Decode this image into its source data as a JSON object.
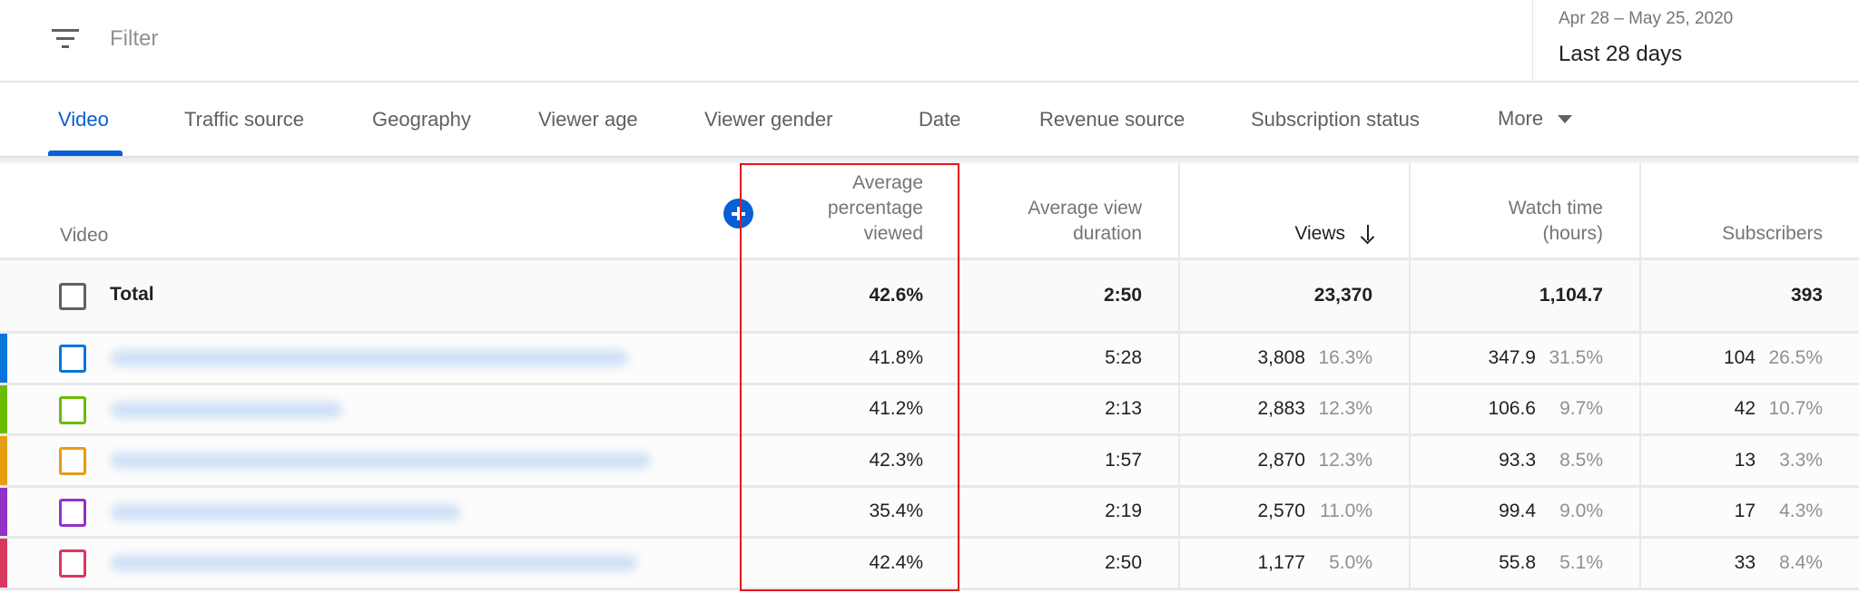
{
  "filter": {
    "placeholder": "Filter",
    "icon": "filter-list-icon"
  },
  "date_picker": {
    "range": "Apr 28 – May 25, 2020",
    "label": "Last 28 days"
  },
  "tabs": [
    {
      "label": "Video",
      "active": true
    },
    {
      "label": "Traffic source",
      "active": false
    },
    {
      "label": "Geography",
      "active": false
    },
    {
      "label": "Viewer age",
      "active": false
    },
    {
      "label": "Viewer gender",
      "active": false
    },
    {
      "label": "Date",
      "active": false
    },
    {
      "label": "Revenue source",
      "active": false
    },
    {
      "label": "Subscription status",
      "active": false
    },
    {
      "label": "More",
      "active": false,
      "icon": "caret-down-icon"
    }
  ],
  "table": {
    "columns": [
      {
        "label": "Video"
      },
      {
        "label": "Average percentage viewed",
        "highlighted": true
      },
      {
        "label": "Average view duration"
      },
      {
        "label": "Views",
        "sorted": "descending"
      },
      {
        "label": "Watch time (hours)"
      },
      {
        "label": "Subscribers"
      }
    ],
    "add_column_icon": "add-circle-icon",
    "total": {
      "label": "Total",
      "avg_pct_viewed": "42.6%",
      "avg_view_duration": "2:50",
      "views": "23,370",
      "watch_time": "1,104.7",
      "subscribers": "393"
    },
    "rows": [
      {
        "color": "#0b74d9",
        "title": "[blurred]",
        "title_width": 570,
        "avg_pct_viewed": "41.8%",
        "avg_view_duration": "5:28",
        "views": "3,808",
        "views_pct": "16.3%",
        "watch_time": "347.9",
        "watch_time_pct": "31.5%",
        "subscribers": "104",
        "subscribers_pct": "26.5%"
      },
      {
        "color": "#6bbb00",
        "title": "[blurred]",
        "title_width": 255,
        "avg_pct_viewed": "41.2%",
        "avg_view_duration": "2:13",
        "views": "2,883",
        "views_pct": "12.3%",
        "watch_time": "106.6",
        "watch_time_pct": "9.7%",
        "subscribers": "42",
        "subscribers_pct": "10.7%"
      },
      {
        "color": "#e89c12",
        "title": "[blurred]",
        "title_width": 595,
        "avg_pct_viewed": "42.3%",
        "avg_view_duration": "1:57",
        "views": "2,870",
        "views_pct": "12.3%",
        "watch_time": "93.3",
        "watch_time_pct": "8.5%",
        "subscribers": "13",
        "subscribers_pct": "3.3%"
      },
      {
        "color": "#9231c7",
        "title": "[blurred]",
        "title_width": 385,
        "avg_pct_viewed": "35.4%",
        "avg_view_duration": "2:19",
        "views": "2,570",
        "views_pct": "11.0%",
        "watch_time": "99.4",
        "watch_time_pct": "9.0%",
        "subscribers": "17",
        "subscribers_pct": "4.3%"
      },
      {
        "color": "#d9385f",
        "title": "[blurred]",
        "title_width": 580,
        "avg_pct_viewed": "42.4%",
        "avg_view_duration": "2:50",
        "views": "1,177",
        "views_pct": "5.0%",
        "watch_time": "55.8",
        "watch_time_pct": "5.1%",
        "subscribers": "33",
        "subscribers_pct": "8.4%"
      }
    ]
  },
  "colors": {
    "accent": "#065fd4",
    "highlight_box": "#e5161d"
  }
}
